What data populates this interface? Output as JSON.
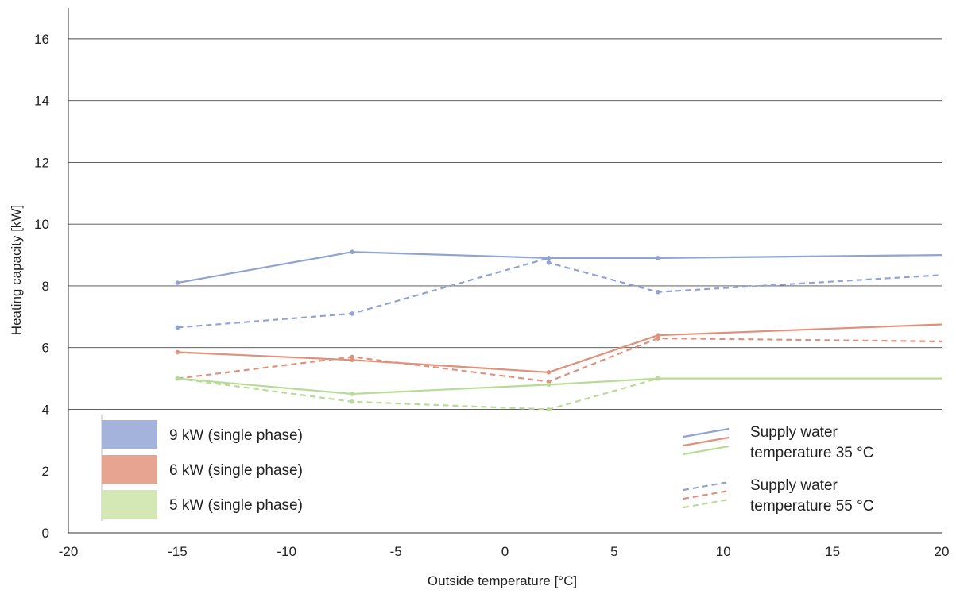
{
  "chart_data": {
    "type": "line",
    "xlabel": "Outside temperature [°C]",
    "ylabel": "Heating capacity [kW]",
    "xlim": [
      -20,
      20
    ],
    "ylim": [
      0,
      17
    ],
    "x_ticks": [
      -20,
      -15,
      -10,
      -5,
      0,
      5,
      10,
      15,
      20
    ],
    "y_ticks": [
      0,
      2,
      4,
      6,
      8,
      10,
      12,
      14,
      16
    ],
    "grid": "horizontal above 4",
    "series": [
      {
        "name": "9 kW (single phase)",
        "supply_temp": "35 °C",
        "color": "#8fa3d4",
        "dashed": false,
        "x": [
          -15,
          -7,
          2,
          7,
          20
        ],
        "y": [
          8.1,
          9.1,
          8.9,
          8.9,
          9.0
        ]
      },
      {
        "name": "9 kW (single phase)",
        "supply_temp": "55 °C",
        "color": "#8fa3d4",
        "dashed": true,
        "x": [
          -15,
          -7,
          2,
          2,
          7,
          20
        ],
        "y": [
          6.65,
          7.1,
          8.9,
          8.75,
          7.8,
          8.35
        ]
      },
      {
        "name": "6 kW (single phase)",
        "supply_temp": "35 °C",
        "color": "#e0917c",
        "dashed": false,
        "x": [
          -15,
          -7,
          2,
          7,
          20
        ],
        "y": [
          5.85,
          5.6,
          5.2,
          6.4,
          6.75
        ]
      },
      {
        "name": "6 kW (single phase)",
        "supply_temp": "55 °C",
        "color": "#e0917c",
        "dashed": true,
        "x": [
          -15,
          -7,
          2,
          7,
          20
        ],
        "y": [
          5.0,
          5.7,
          4.9,
          6.3,
          6.2
        ]
      },
      {
        "name": "5 kW (single phase)",
        "supply_temp": "35 °C",
        "color": "#b8dc97",
        "dashed": false,
        "x": [
          -15,
          -7,
          2,
          7,
          20
        ],
        "y": [
          5.0,
          4.5,
          4.8,
          5.0,
          5.0
        ]
      },
      {
        "name": "5 kW (single phase)",
        "supply_temp": "55 °C",
        "color": "#b8dc97",
        "dashed": true,
        "x": [
          -15,
          -7,
          2,
          7
        ],
        "y": [
          5.0,
          4.25,
          4.0,
          5.0
        ]
      }
    ],
    "legend_units": {
      "placement": "bottom-left",
      "items": [
        {
          "label": "9 kW (single phase)",
          "color": "#a3b3dc"
        },
        {
          "label": "6 kW (single phase)",
          "color": "#e6a491"
        },
        {
          "label": "5 kW (single phase)",
          "color": "#d4e8b5"
        }
      ]
    },
    "legend_styles": {
      "placement": "bottom-right",
      "items": [
        {
          "line1": "Supply water",
          "line2": "temperature 35 °C",
          "dashed": false
        },
        {
          "line1": "Supply water",
          "line2": "temperature 55 °C",
          "dashed": true
        }
      ]
    }
  }
}
